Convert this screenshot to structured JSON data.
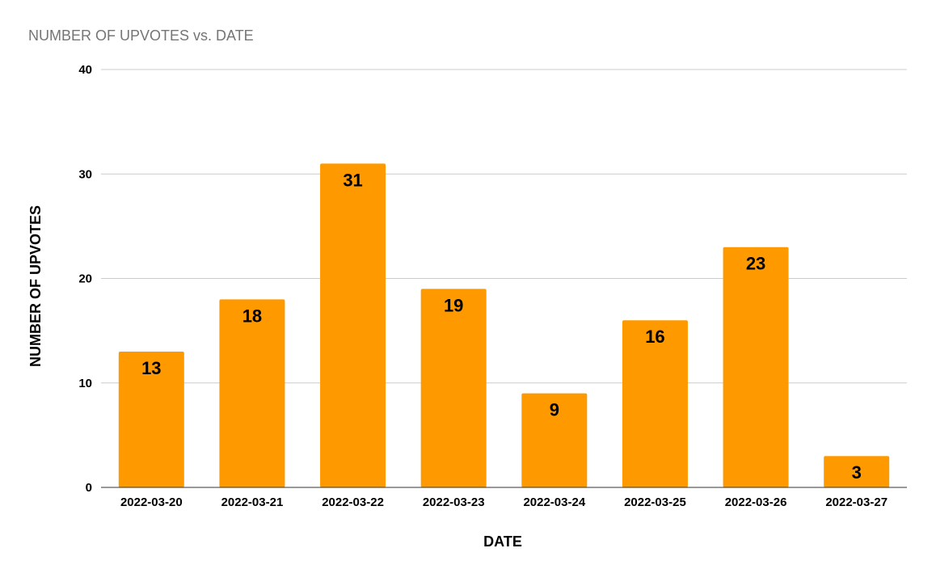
{
  "chart_data": {
    "type": "bar",
    "title": "NUMBER OF UPVOTES vs. DATE",
    "xlabel": "DATE",
    "ylabel": "NUMBER OF UPVOTES",
    "categories": [
      "2022-03-20",
      "2022-03-21",
      "2022-03-22",
      "2022-03-23",
      "2022-03-24",
      "2022-03-25",
      "2022-03-26",
      "2022-03-27"
    ],
    "values": [
      13,
      18,
      31,
      19,
      9,
      16,
      23,
      3
    ],
    "ylim": [
      0,
      40
    ],
    "yticks": [
      0,
      10,
      20,
      30,
      40
    ],
    "grid": true,
    "legend": "none",
    "bar_color": "#ff9900",
    "data_labels": true
  }
}
